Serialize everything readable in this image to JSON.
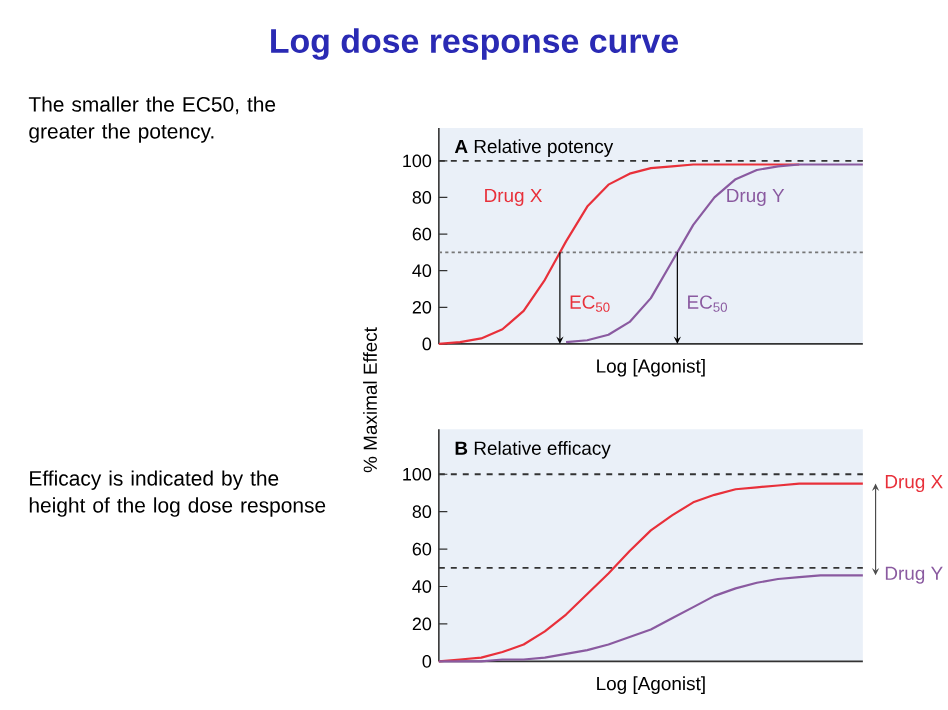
{
  "chart_data": [
    {
      "type": "other",
      "title": "Log dose response curve",
      "annotations": [
        "The smaller the EC50, the greater the potency.",
        "Efficacy is indicated by the height of the log dose response"
      ]
    },
    {
      "type": "line",
      "title": "**A**   Relative potency",
      "xlabel": "Log [Agonist]",
      "ylabel": "% Maximal Effect",
      "categories": [
        null,
        null,
        null,
        null,
        null,
        null,
        null,
        null,
        null,
        null,
        null,
        null,
        null,
        null,
        null,
        null,
        null,
        null,
        null,
        null,
        null
      ],
      "series": [
        {
          "name": "Drug X",
          "color": "#e8303a",
          "values": [
            0,
            1,
            3,
            8,
            18,
            35,
            56,
            75,
            87,
            93,
            96,
            97,
            98,
            98,
            98,
            98,
            98,
            98,
            null,
            null,
            null
          ]
        },
        {
          "name": "Drug Y",
          "color": "#8a5aa0",
          "values": [
            null,
            null,
            null,
            null,
            null,
            null,
            1,
            2,
            5,
            12,
            25,
            45,
            65,
            80,
            90,
            95,
            97,
            98,
            98,
            98,
            98
          ]
        }
      ],
      "ylim": [
        0,
        118
      ],
      "yticks": [
        0,
        20,
        40,
        60,
        80,
        100
      ],
      "tick_labels": "y",
      "grid": false,
      "marker": "none",
      "line_style": "solid",
      "ref_lines": [
        {
          "axis": "y",
          "value": 100,
          "color": "#333333",
          "line_style": "dashed"
        },
        {
          "axis": "y",
          "value": 50,
          "color": "#777777",
          "line_style": "dotted"
        }
      ],
      "annotations": [
        "EC$_{50}$",
        "EC$_{50}$"
      ]
    },
    {
      "type": "line",
      "title": "**B**   Relative efficacy",
      "xlabel": "Log [Agonist]",
      "categories": [
        null,
        null,
        null,
        null,
        null,
        null,
        null,
        null,
        null,
        null,
        null,
        null,
        null,
        null,
        null,
        null,
        null,
        null,
        null,
        null,
        null
      ],
      "series": [
        {
          "name": "Drug X",
          "color": "#e8303a",
          "values": [
            0,
            1,
            2,
            5,
            9,
            16,
            25,
            36,
            47,
            59,
            70,
            78,
            85,
            89,
            92,
            93,
            94,
            95,
            95,
            95,
            95
          ]
        },
        {
          "name": "Drug Y",
          "color": "#8a5aa0",
          "values": [
            0,
            0,
            0,
            1,
            1,
            2,
            4,
            6,
            9,
            13,
            17,
            23,
            29,
            35,
            39,
            42,
            44,
            45,
            46,
            46,
            46
          ]
        }
      ],
      "ylim": [
        0,
        124
      ],
      "yticks": [
        0,
        20,
        40,
        60,
        80,
        100
      ],
      "tick_labels": "y",
      "grid": false,
      "marker": "none",
      "line_style": "solid",
      "ref_lines": [
        {
          "axis": "y",
          "value": 100,
          "color": "#333333",
          "line_style": "dashed"
        },
        {
          "axis": "y",
          "value": 50,
          "color": "#333333",
          "line_style": "dashed"
        }
      ]
    }
  ]
}
